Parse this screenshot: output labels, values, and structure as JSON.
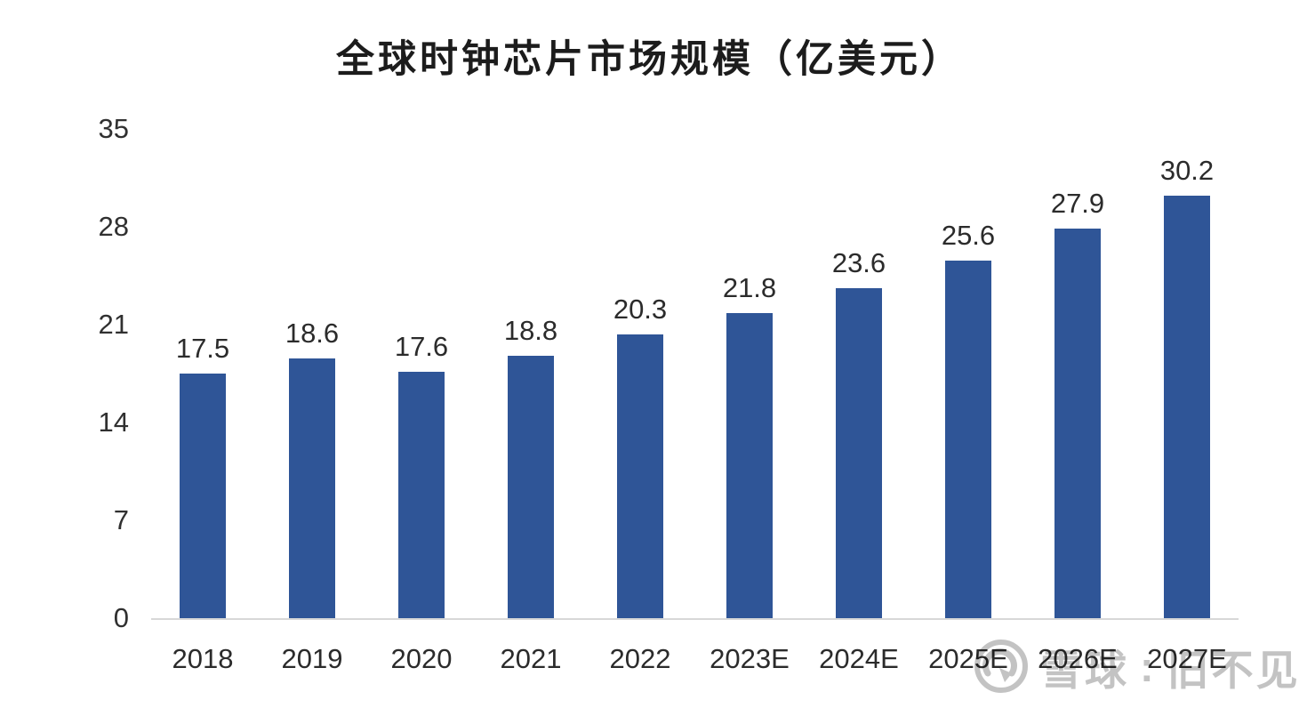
{
  "chart_data": {
    "type": "bar",
    "title": "全球时钟芯片市场规模（亿美元）",
    "categories": [
      "2018",
      "2019",
      "2020",
      "2021",
      "2022",
      "2023E",
      "2024E",
      "2025E",
      "2026E",
      "2027E"
    ],
    "values": [
      17.5,
      18.6,
      17.6,
      18.8,
      20.3,
      21.8,
      23.6,
      25.6,
      27.9,
      30.2
    ],
    "xlabel": "",
    "ylabel": "",
    "yticks": [
      0,
      7,
      14,
      21,
      28,
      35
    ],
    "ylim": [
      0,
      35
    ],
    "grid": false,
    "legend": "none",
    "bar_color": "#2F5597",
    "label_color": "#2b2b2b",
    "axis_line_color": "#d8d8d8"
  },
  "watermark": {
    "site_name": "雪球",
    "separator": ":",
    "username": "旧不见",
    "logo": "xueqiu-snowball-icon",
    "color": "#c3c3c3"
  }
}
